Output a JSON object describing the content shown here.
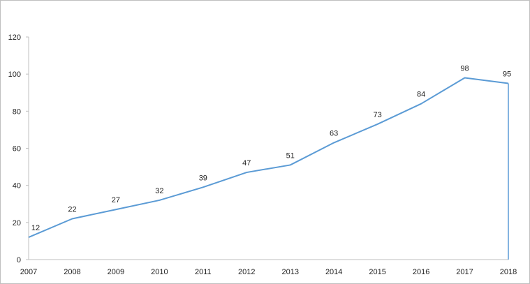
{
  "chart_data": {
    "type": "line",
    "title": "",
    "xlabel": "",
    "ylabel": "",
    "categories": [
      "2007",
      "2008",
      "2009",
      "2010",
      "2011",
      "2012",
      "2013",
      "2014",
      "2015",
      "2016",
      "2017",
      "2018"
    ],
    "series": [
      {
        "values": [
          12,
          22,
          27,
          32,
          39,
          47,
          51,
          63,
          73,
          84,
          98,
          95
        ]
      }
    ],
    "data_labels": [
      "12",
      "22",
      "27",
      "32",
      "39",
      "47",
      "51",
      "63",
      "73",
      "84",
      "98",
      "95"
    ],
    "y_ticks": [
      "0",
      "20",
      "40",
      "60",
      "80",
      "100",
      "120"
    ],
    "ylim": [
      0,
      120
    ],
    "grid": false,
    "legend": "none",
    "line_color": "#5b9bd5",
    "axis_color": "#bfbfbf"
  }
}
